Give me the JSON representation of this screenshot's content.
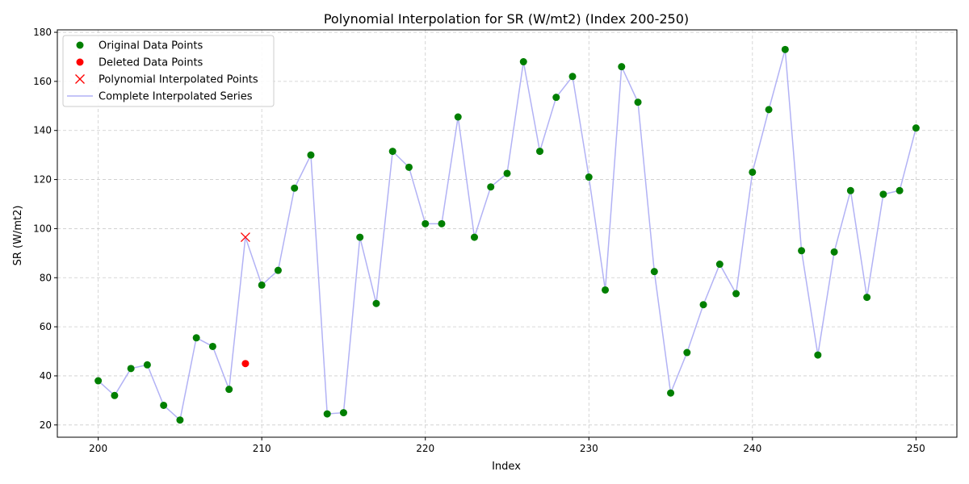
{
  "chart_data": {
    "type": "line",
    "title": "Polynomial Interpolation for SR (W/mt2) (Index 200-250)",
    "xlabel": "Index",
    "ylabel": "SR (W/mt2)",
    "xlim": [
      197.5,
      252.5
    ],
    "ylim": [
      15,
      181
    ],
    "xticks": [
      200,
      210,
      220,
      230,
      240,
      250
    ],
    "yticks": [
      20,
      40,
      60,
      80,
      100,
      120,
      140,
      160,
      180
    ],
    "grid": true,
    "legend_position": "top-left",
    "colors": {
      "original": "#007f00",
      "deleted": "#ff0000",
      "interpolated": "#ff0000",
      "series": "#b2b2f5",
      "grid": "#cccccc"
    },
    "legend": [
      {
        "label": "Original Data Points",
        "marker": "dot",
        "color": "#007f00"
      },
      {
        "label": "Deleted Data Points",
        "marker": "dot",
        "color": "#ff0000"
      },
      {
        "label": "Polynomial Interpolated Points",
        "marker": "x",
        "color": "#ff0000"
      },
      {
        "label": "Complete Interpolated Series",
        "marker": "line",
        "color": "#b2b2f5"
      }
    ],
    "series": [
      {
        "name": "Original Data Points",
        "x": [
          200,
          201,
          202,
          203,
          204,
          205,
          206,
          207,
          208,
          210,
          211,
          212,
          213,
          214,
          215,
          216,
          217,
          218,
          219,
          220,
          221,
          222,
          223,
          224,
          225,
          226,
          227,
          228,
          229,
          230,
          231,
          232,
          233,
          234,
          235,
          236,
          237,
          238,
          239,
          240,
          241,
          242,
          243,
          244,
          245,
          246,
          247,
          248,
          249,
          250
        ],
        "y": [
          38,
          32,
          43,
          44.5,
          28,
          22,
          55.5,
          52,
          34.5,
          77,
          83,
          116.5,
          130,
          24.5,
          25,
          96.5,
          69.5,
          131.5,
          125,
          102,
          102,
          145.5,
          96.5,
          117,
          122.5,
          168,
          131.5,
          153.5,
          162,
          121,
          75,
          166,
          151.5,
          82.5,
          33,
          49.5,
          69,
          85.5,
          73.5,
          123,
          148.5,
          173,
          91,
          48.5,
          90.5,
          115.5,
          72,
          114,
          115.5,
          141
        ]
      },
      {
        "name": "Deleted Data Points",
        "x": [
          209
        ],
        "y": [
          45
        ]
      },
      {
        "name": "Polynomial Interpolated Points",
        "x": [
          209
        ],
        "y": [
          96.5
        ]
      },
      {
        "name": "Complete Interpolated Series",
        "x": [
          200,
          201,
          202,
          203,
          204,
          205,
          206,
          207,
          208,
          209,
          210,
          211,
          212,
          213,
          214,
          215,
          216,
          217,
          218,
          219,
          220,
          221,
          222,
          223,
          224,
          225,
          226,
          227,
          228,
          229,
          230,
          231,
          232,
          233,
          234,
          235,
          236,
          237,
          238,
          239,
          240,
          241,
          242,
          243,
          244,
          245,
          246,
          247,
          248,
          249,
          250
        ],
        "y": [
          38,
          32,
          43,
          44.5,
          28,
          22,
          55.5,
          52,
          34.5,
          96.5,
          77,
          83,
          116.5,
          130,
          24.5,
          25,
          96.5,
          69.5,
          131.5,
          125,
          102,
          102,
          145.5,
          96.5,
          117,
          122.5,
          168,
          131.5,
          153.5,
          162,
          121,
          75,
          166,
          151.5,
          82.5,
          33,
          49.5,
          69,
          85.5,
          73.5,
          123,
          148.5,
          173,
          91,
          48.5,
          90.5,
          115.5,
          72,
          114,
          115.5,
          141
        ]
      }
    ]
  }
}
